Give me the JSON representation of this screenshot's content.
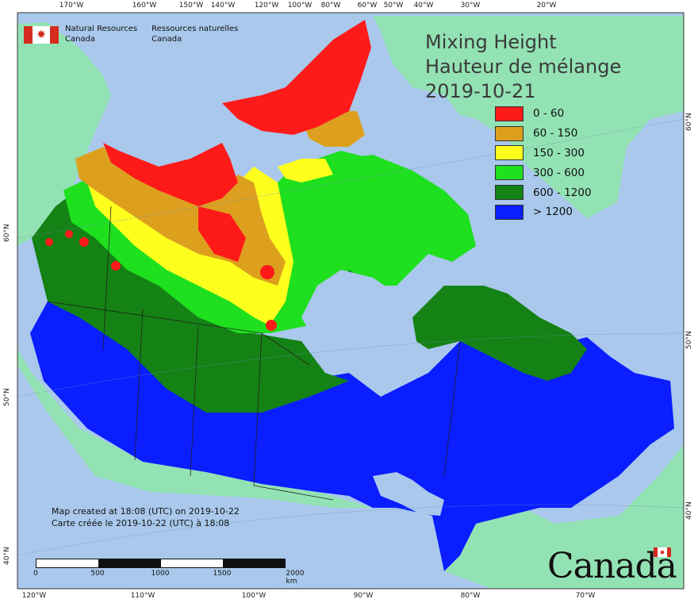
{
  "map": {
    "title_en": "Mixing Height",
    "title_fr": "Hauteur de mélange",
    "date": "2019-10-21",
    "agency_en_1": "Natural Resources",
    "agency_en_2": "Canada",
    "agency_fr_1": "Ressources naturelles",
    "agency_fr_2": "Canada",
    "credits_en": "Map created at 18:08 (UTC) on 2019-10-22",
    "credits_fr": "Carte créée le 2019-10-22 (UTC) à 18:08",
    "wordmark": "Canada",
    "legend": [
      {
        "label": "0 - 60",
        "color": "#ff1a1a"
      },
      {
        "label": "60 - 150",
        "color": "#dca01e"
      },
      {
        "label": "150 - 300",
        "color": "#ffff1e"
      },
      {
        "label": "300 - 600",
        "color": "#1ee01e"
      },
      {
        "label": "600 - 1200",
        "color": "#148214"
      },
      {
        "label": "> 1200",
        "color": "#0a1eff"
      }
    ],
    "colors": {
      "ocean": "#a9c8ec",
      "land_outside": "#93e2b4",
      "border": "#222222"
    },
    "scale": {
      "labels": [
        "0",
        "500",
        "1000",
        "1500",
        "2000 km"
      ]
    },
    "ticks_top": [
      "170°W",
      "160°W",
      "150°W",
      "140°W",
      "120°W",
      "100°W",
      "80°W",
      "60°W",
      "50°W",
      "40°W",
      "30°W",
      "20°W"
    ],
    "ticks_bottom": [
      "120°W",
      "110°W",
      "100°W",
      "90°W",
      "80°W",
      "70°W"
    ],
    "ticks_left": [
      "60°N",
      "50°N",
      "40°N"
    ],
    "ticks_right": [
      "60°N",
      "50°N",
      "40°N"
    ]
  }
}
